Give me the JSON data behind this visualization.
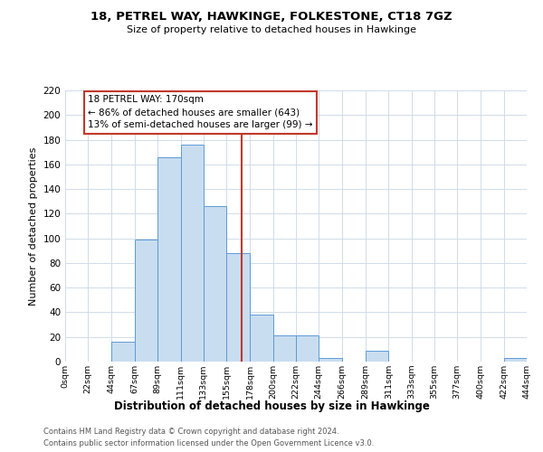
{
  "title": "18, PETREL WAY, HAWKINGE, FOLKESTONE, CT18 7GZ",
  "subtitle": "Size of property relative to detached houses in Hawkinge",
  "xlabel": "Distribution of detached houses by size in Hawkinge",
  "ylabel": "Number of detached properties",
  "bin_edges": [
    0,
    22,
    44,
    67,
    89,
    111,
    133,
    155,
    178,
    200,
    222,
    244,
    266,
    289,
    311,
    333,
    355,
    377,
    400,
    422,
    444
  ],
  "bar_heights": [
    0,
    0,
    16,
    99,
    166,
    176,
    126,
    88,
    38,
    21,
    21,
    3,
    0,
    9,
    0,
    0,
    0,
    0,
    0,
    3
  ],
  "bar_color": "#c9ddf0",
  "bar_edgecolor": "#5b9bd5",
  "property_size": 170,
  "vline_color": "#c0392b",
  "annotation_title": "18 PETREL WAY: 170sqm",
  "annotation_line1": "← 86% of detached houses are smaller (643)",
  "annotation_line2": "13% of semi-detached houses are larger (99) →",
  "annotation_box_edgecolor": "#c0392b",
  "annotation_box_facecolor": "#ffffff",
  "xlim": [
    0,
    444
  ],
  "ylim": [
    0,
    220
  ],
  "yticks": [
    0,
    20,
    40,
    60,
    80,
    100,
    120,
    140,
    160,
    180,
    200,
    220
  ],
  "xtick_labels": [
    "0sqm",
    "22sqm",
    "44sqm",
    "67sqm",
    "89sqm",
    "111sqm",
    "133sqm",
    "155sqm",
    "178sqm",
    "200sqm",
    "222sqm",
    "244sqm",
    "266sqm",
    "289sqm",
    "311sqm",
    "333sqm",
    "355sqm",
    "377sqm",
    "400sqm",
    "422sqm",
    "444sqm"
  ],
  "footnote1": "Contains HM Land Registry data © Crown copyright and database right 2024.",
  "footnote2": "Contains public sector information licensed under the Open Government Licence v3.0.",
  "grid_color": "#d0dce8",
  "background_color": "#ffffff"
}
